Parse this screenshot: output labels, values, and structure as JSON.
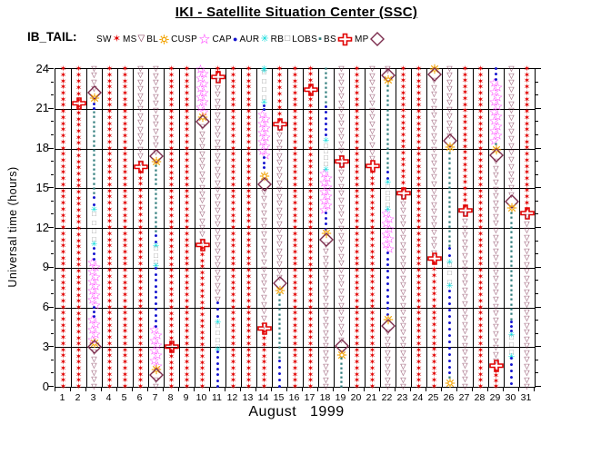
{
  "header": {
    "title": "IKI - Satellite Situation Center (SSC)",
    "dataset_label": "IB_TAIL:"
  },
  "chart_data": {
    "type": "scatter",
    "title": "IKI - Satellite Situation Center (SSC)",
    "xlabel": "August   1999",
    "ylabel": "Universal time (hours)",
    "x_ticks": [
      1,
      2,
      3,
      4,
      5,
      6,
      7,
      8,
      9,
      10,
      11,
      12,
      13,
      14,
      15,
      16,
      17,
      18,
      19,
      20,
      21,
      22,
      23,
      24,
      25,
      26,
      27,
      28,
      29,
      30,
      31
    ],
    "y_ticks": [
      0,
      3,
      6,
      9,
      12,
      15,
      18,
      21,
      24
    ],
    "ylim": [
      0,
      24
    ],
    "grid": true,
    "legend_position": "top",
    "legend": [
      {
        "id": "sw",
        "label": "SW",
        "color": "#e10000",
        "glyph": "red-star-icon"
      },
      {
        "id": "ms",
        "label": "MS",
        "color": "#7c2d4d",
        "glyph": "open-triangle-down-icon"
      },
      {
        "id": "bl",
        "label": "BL",
        "color": "#f2a200",
        "glyph": "open-sun-icon"
      },
      {
        "id": "cusp",
        "label": "CUSP",
        "color": "#ff1cff",
        "glyph": "open-star-icon"
      },
      {
        "id": "cap",
        "label": "CAP",
        "color": "#1414cf",
        "glyph": "filled-circle-icon"
      },
      {
        "id": "aur",
        "label": "AUR",
        "color": "#00d9d9",
        "glyph": "asterisk-icon"
      },
      {
        "id": "rb",
        "label": "RB",
        "color": "#8f8f8f",
        "glyph": "open-square-icon"
      },
      {
        "id": "lobs",
        "label": "LOBS",
        "color": "#2f7c7c",
        "glyph": "filled-square-icon"
      },
      {
        "id": "bs",
        "label": "BS",
        "color": "#e10000",
        "glyph": "open-cross-icon"
      },
      {
        "id": "mp",
        "label": "MP",
        "color": "#7c2d4d",
        "glyph": "open-diamond-icon"
      }
    ],
    "days": [
      {
        "day": 1,
        "segments": [
          [
            "sw",
            24,
            0
          ]
        ]
      },
      {
        "day": 2,
        "segments": [
          [
            "sw",
            24,
            21.6
          ],
          [
            "bs",
            21.4
          ],
          [
            "sw",
            21.1,
            0
          ]
        ]
      },
      {
        "day": 3,
        "segments": [
          [
            "ms",
            24,
            22.5
          ],
          [
            "mp",
            22.2
          ],
          [
            "bl",
            21.8
          ],
          [
            "cap",
            21.3,
            21.0
          ],
          [
            "lobs",
            20.7,
            14.6
          ],
          [
            "cap",
            14.3,
            13.7
          ],
          [
            "aur",
            13.4
          ],
          [
            "rb",
            13.0,
            11.1
          ],
          [
            "aur",
            10.8
          ],
          [
            "cap",
            10.4,
            9.6
          ],
          [
            "cusp",
            9.4,
            6.2
          ],
          [
            "cap",
            6.0,
            5.3
          ],
          [
            "cusp",
            5.1,
            3.6
          ],
          [
            "bl",
            3.3
          ],
          [
            "mp",
            3.0
          ],
          [
            "ms",
            2.6,
            0
          ]
        ]
      },
      {
        "day": 4,
        "segments": [
          [
            "sw",
            24,
            0
          ]
        ]
      },
      {
        "day": 5,
        "segments": [
          [
            "sw",
            24,
            0
          ]
        ]
      },
      {
        "day": 6,
        "segments": [
          [
            "ms",
            24,
            16.9
          ],
          [
            "bs",
            16.6
          ],
          [
            "sw",
            16.2,
            0
          ]
        ]
      },
      {
        "day": 7,
        "segments": [
          [
            "ms",
            24,
            17.7
          ],
          [
            "mp",
            17.4
          ],
          [
            "bl",
            17.0
          ],
          [
            "lobs",
            16.7,
            11.7
          ],
          [
            "cap",
            11.4,
            10.9
          ],
          [
            "aur",
            10.6
          ],
          [
            "rb",
            10.4,
            9.4
          ],
          [
            "aur",
            9.1
          ],
          [
            "cap",
            8.9,
            4.5
          ],
          [
            "cusp",
            4.3,
            1.6
          ],
          [
            "bl",
            1.3
          ],
          [
            "mp",
            0.9
          ],
          [
            "ms",
            0.5,
            0
          ]
        ]
      },
      {
        "day": 8,
        "segments": [
          [
            "sw",
            24,
            3.2
          ],
          [
            "bs",
            3.0
          ],
          [
            "sw",
            2.7,
            0
          ]
        ]
      },
      {
        "day": 9,
        "segments": [
          [
            "sw",
            24,
            0
          ]
        ]
      },
      {
        "day": 10,
        "segments": [
          [
            "cusp",
            24,
            20.8
          ],
          [
            "bl",
            20.4
          ],
          [
            "mp",
            20.0
          ],
          [
            "ms",
            19.6,
            11.0
          ],
          [
            "bs",
            10.7
          ],
          [
            "sw",
            10.4,
            0
          ]
        ]
      },
      {
        "day": 11,
        "segments": [
          [
            "sw",
            24,
            23.7
          ],
          [
            "bs",
            23.4
          ],
          [
            "ms",
            23.1,
            6.6
          ],
          [
            "cap",
            6.3,
            5.3
          ],
          [
            "aur",
            4.9
          ],
          [
            "rb",
            4.6,
            3.0
          ],
          [
            "aur",
            2.8
          ],
          [
            "cap",
            2.6,
            0
          ]
        ]
      },
      {
        "day": 12,
        "segments": [
          [
            "sw",
            24,
            0
          ]
        ]
      },
      {
        "day": 13,
        "segments": [
          [
            "sw",
            24,
            0
          ]
        ]
      },
      {
        "day": 14,
        "segments": [
          [
            "aur",
            24,
            23.9
          ],
          [
            "rb",
            23.7,
            21.8
          ],
          [
            "aur",
            21.5
          ],
          [
            "cap",
            21.2,
            20.9
          ],
          [
            "cusp",
            20.6,
            17.5
          ],
          [
            "cap",
            17.3,
            16.5
          ],
          [
            "bl",
            15.9
          ],
          [
            "mp",
            15.3
          ],
          [
            "ms",
            14.7,
            4.6
          ],
          [
            "bs",
            4.4
          ],
          [
            "sw",
            4.1,
            0
          ]
        ]
      },
      {
        "day": 15,
        "segments": [
          [
            "sw",
            24,
            20.1
          ],
          [
            "bs",
            19.8
          ],
          [
            "ms",
            19.5,
            8.2
          ],
          [
            "mp",
            7.8
          ],
          [
            "bl",
            7.3
          ],
          [
            "lobs",
            6.9,
            2.2
          ],
          [
            "cap",
            1.9,
            0
          ]
        ]
      },
      {
        "day": 16,
        "segments": [
          [
            "sw",
            24,
            0
          ]
        ]
      },
      {
        "day": 17,
        "segments": [
          [
            "sw",
            24,
            22.7
          ],
          [
            "bs",
            22.4
          ],
          [
            "sw",
            22.1,
            0
          ]
        ]
      },
      {
        "day": 18,
        "segments": [
          [
            "lobs",
            24,
            21.5
          ],
          [
            "cap",
            21.1,
            19.0
          ],
          [
            "aur",
            18.6
          ],
          [
            "rb",
            18.2,
            16.8
          ],
          [
            "aur",
            16.4
          ],
          [
            "cusp",
            16.1,
            13.4
          ],
          [
            "cap",
            13.1,
            11.9
          ],
          [
            "bl",
            11.6
          ],
          [
            "mp",
            11.1
          ],
          [
            "ms",
            10.7,
            0
          ]
        ]
      },
      {
        "day": 19,
        "segments": [
          [
            "ms",
            24,
            17.3
          ],
          [
            "bs",
            17.0
          ],
          [
            "ms",
            16.7,
            3.5
          ],
          [
            "mp",
            3.1
          ],
          [
            "bl",
            2.4
          ],
          [
            "lobs",
            2.1,
            0
          ]
        ]
      },
      {
        "day": 20,
        "segments": [
          [
            "sw",
            24,
            0
          ]
        ]
      },
      {
        "day": 21,
        "segments": [
          [
            "ms",
            24,
            17.2
          ],
          [
            "bs",
            16.7
          ],
          [
            "sw",
            16.2,
            0
          ]
        ]
      },
      {
        "day": 22,
        "segments": [
          [
            "ms",
            24,
            23.9
          ],
          [
            "mp",
            23.5
          ],
          [
            "bl",
            23.2
          ],
          [
            "lobs",
            22.7,
            16.5
          ],
          [
            "cap",
            16.2,
            15.7
          ],
          [
            "aur",
            15.4
          ],
          [
            "rb",
            15.1,
            13.7
          ],
          [
            "aur",
            13.4
          ],
          [
            "cusp",
            13.1,
            10.4
          ],
          [
            "cap",
            10.1,
            5.4
          ],
          [
            "bl",
            5.1
          ],
          [
            "mp",
            4.6
          ],
          [
            "ms",
            4.1,
            0
          ]
        ]
      },
      {
        "day": 23,
        "segments": [
          [
            "sw",
            24,
            14.9
          ],
          [
            "bs",
            14.6
          ],
          [
            "ms",
            14.3,
            0
          ]
        ]
      },
      {
        "day": 24,
        "segments": [
          [
            "sw",
            24,
            0
          ]
        ]
      },
      {
        "day": 25,
        "segments": [
          [
            "bl",
            24
          ],
          [
            "mp",
            23.6
          ],
          [
            "ms",
            23.1,
            10.1
          ],
          [
            "bs",
            9.7
          ],
          [
            "sw",
            9.3,
            0
          ]
        ]
      },
      {
        "day": 26,
        "segments": [
          [
            "ms",
            24,
            18.9
          ],
          [
            "mp",
            18.6
          ],
          [
            "bl",
            18.1
          ],
          [
            "lobs",
            17.6,
            10.6
          ],
          [
            "cap",
            10.4,
            9.9
          ],
          [
            "aur",
            9.4
          ],
          [
            "rb",
            9.2,
            7.9
          ],
          [
            "aur",
            7.6
          ],
          [
            "cap",
            7.2,
            1.0
          ],
          [
            "lobs",
            0.7
          ],
          [
            "bl",
            0.3
          ]
        ]
      },
      {
        "day": 27,
        "segments": [
          [
            "sw",
            24,
            13.6
          ],
          [
            "bs",
            13.3
          ],
          [
            "ms",
            13.0,
            0
          ]
        ]
      },
      {
        "day": 28,
        "segments": [
          [
            "sw",
            24,
            0
          ]
        ]
      },
      {
        "day": 29,
        "segments": [
          [
            "cap",
            24,
            23.2
          ],
          [
            "cusp",
            23.0,
            18.6
          ],
          [
            "lobs",
            18.3
          ],
          [
            "bl",
            17.9
          ],
          [
            "mp",
            17.5
          ],
          [
            "ms",
            17.0,
            1.9
          ],
          [
            "bs",
            1.6
          ],
          [
            "sw",
            1.2,
            0
          ]
        ]
      },
      {
        "day": 30,
        "segments": [
          [
            "ms",
            24,
            14.5
          ],
          [
            "mp",
            14.0
          ],
          [
            "bl",
            13.5
          ],
          [
            "lobs",
            13.1,
            5.1
          ],
          [
            "cap",
            4.9,
            4.2
          ],
          [
            "aur",
            3.9
          ],
          [
            "rb",
            3.7,
            2.6
          ],
          [
            "aur",
            2.3
          ],
          [
            "cap",
            2.1,
            0.2
          ]
        ]
      },
      {
        "day": 31,
        "segments": [
          [
            "sw",
            24,
            13.4
          ],
          [
            "bs",
            13.1
          ],
          [
            "ms",
            12.8,
            0
          ]
        ]
      }
    ]
  }
}
